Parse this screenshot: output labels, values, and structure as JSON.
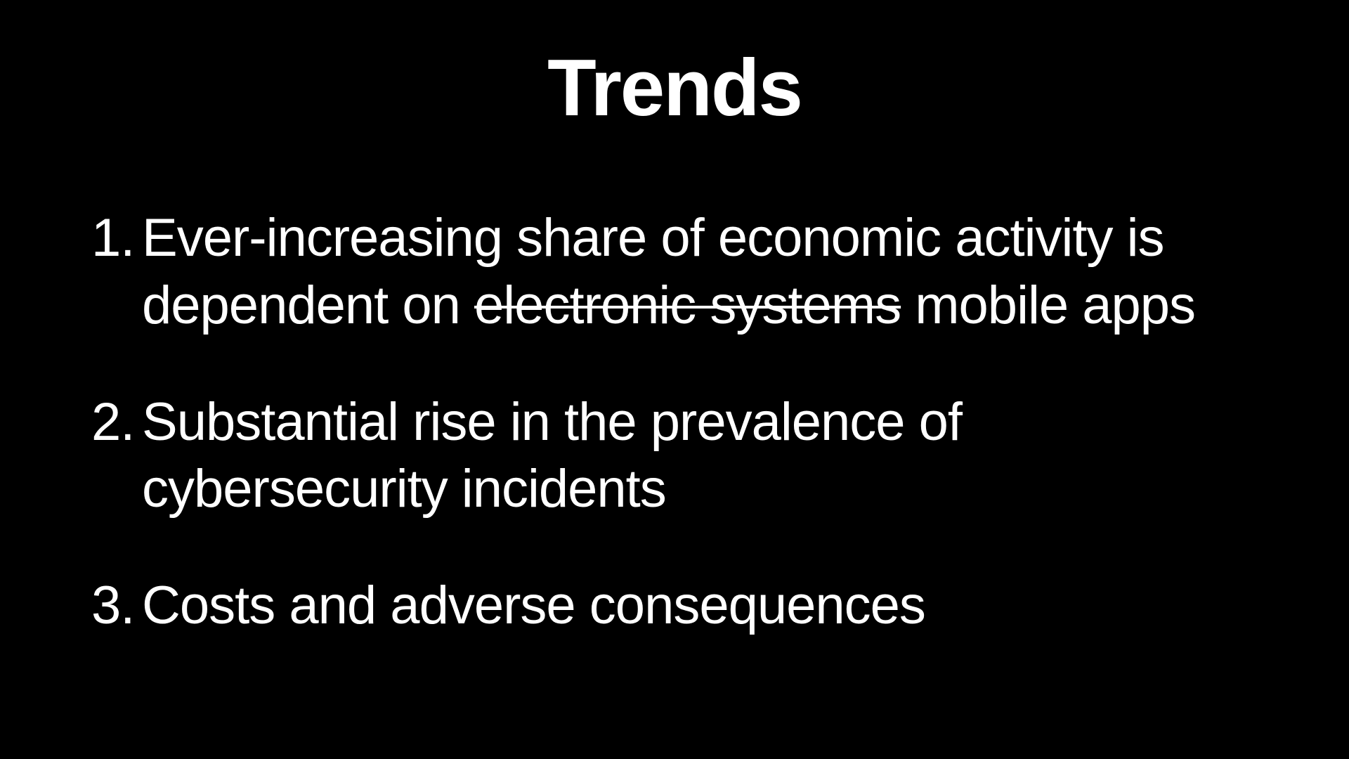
{
  "slide": {
    "title": "Trends",
    "background_color": "#000000",
    "text_color": "#ffffff",
    "title_fontsize": 114,
    "title_fontweight": 700,
    "body_fontsize": 76,
    "items": [
      {
        "prefix": "Ever-increasing share of economic activity is dependent on ",
        "strike": "electronic systems",
        "suffix": " mobile apps"
      },
      {
        "prefix": "Substantial rise in the prevalence of cybersecurity incidents",
        "strike": "",
        "suffix": ""
      },
      {
        "prefix": "Costs and adverse consequences",
        "strike": "",
        "suffix": ""
      }
    ]
  }
}
